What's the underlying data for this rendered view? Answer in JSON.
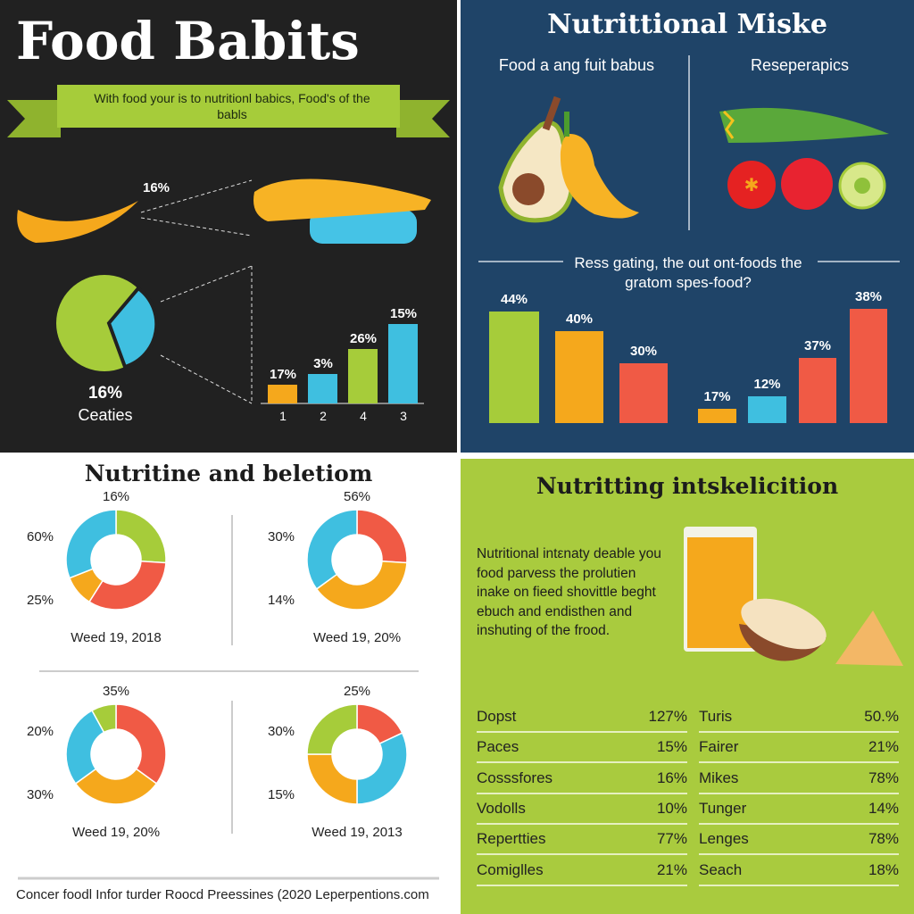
{
  "panel_food": {
    "title": "Food Babits",
    "banner": "With food your is to nutritionl babics, Food's of the babls",
    "callout_pct": "16%",
    "pie_pct": "16%",
    "pie_label": "Ceaties",
    "pie_colors": [
      "#a6cc3a",
      "#3fbfe0"
    ]
  },
  "panel_miske": {
    "title": "Nutrittional Miske",
    "left_heading": "Food a ang fuit babus",
    "right_heading": "Reseperapics",
    "question": "Ress gating, the out ont-foods the gratom spes-food?"
  },
  "panel_beletiom": {
    "title": "Nutritine and beletiom",
    "footer": "Concer foodl Infor turder Roocd Preessines (2020 Leperpentions.com"
  },
  "panel_intake": {
    "title": "Nutritting intskelicition",
    "paragraph": "Nutritional intεnaty deable you food parvess the prolutien inake on fieed shovittle beght ebuch and endisthen and inshuting of the frood.",
    "table_left": [
      {
        "name": "Dopst",
        "value": "127%"
      },
      {
        "name": "Paces",
        "value": "15%"
      },
      {
        "name": "Cosssfores",
        "value": "16%"
      },
      {
        "name": "Vodolls",
        "value": "10%"
      },
      {
        "name": "Repertties",
        "value": "77%"
      },
      {
        "name": "Comiglles",
        "value": "21%"
      }
    ],
    "table_right": [
      {
        "name": "Turis",
        "value": "50.%"
      },
      {
        "name": "Fairer",
        "value": "21%"
      },
      {
        "name": "Mikes",
        "value": "78%"
      },
      {
        "name": "Tunger",
        "value": "14%"
      },
      {
        "name": "Lenges",
        "value": "78%"
      },
      {
        "name": "Seach",
        "value": "18%"
      }
    ]
  },
  "chart_data": [
    {
      "type": "bar",
      "categories": [
        "1",
        "2",
        "4",
        "3"
      ],
      "labels": [
        "17%",
        "3%",
        "26%",
        "15%"
      ],
      "colors": [
        "#f5a81c",
        "#3fbfe0",
        "#a6cc3a",
        "#3fbfe0"
      ]
    },
    {
      "type": "bar",
      "labels": [
        "44%",
        "40%",
        "30%",
        "17%",
        "12%",
        "37%",
        "38%"
      ],
      "colors": [
        "#a6cc3a",
        "#f5a81c",
        "#f05a45",
        "#f5a81c",
        "#3fbfe0",
        "#f05a45",
        "#f05a45"
      ]
    },
    {
      "type": "pie",
      "donuts": [
        {
          "top": "16%",
          "left_upper": "60%",
          "left_lower": "25%",
          "caption": "Weed 19, 2018",
          "segments": [
            {
              "color": "#a6cc3a",
              "share": 0.26
            },
            {
              "color": "#f05a45",
              "share": 0.33
            },
            {
              "color": "#f5a81c",
              "share": 0.1
            },
            {
              "color": "#3fbfe0",
              "share": 0.31
            }
          ]
        },
        {
          "top": "56%",
          "left_upper": "30%",
          "left_lower": "14%",
          "caption": "Weed 19, 20%",
          "segments": [
            {
              "color": "#f05a45",
              "share": 0.26
            },
            {
              "color": "#f5a81c",
              "share": 0.39
            },
            {
              "color": "#3fbfe0",
              "share": 0.35
            }
          ]
        },
        {
          "top": "35%",
          "left_upper": "20%",
          "left_lower": "30%",
          "caption": "Weed 19, 20%",
          "segments": [
            {
              "color": "#f05a45",
              "share": 0.35
            },
            {
              "color": "#f5a81c",
              "share": 0.3
            },
            {
              "color": "#3fbfe0",
              "share": 0.27
            },
            {
              "color": "#a6cc3a",
              "share": 0.08
            }
          ]
        },
        {
          "top": "25%",
          "left_upper": "30%",
          "left_lower": "15%",
          "caption": "Weed 19, 2013",
          "segments": [
            {
              "color": "#f05a45",
              "share": 0.18
            },
            {
              "color": "#3fbfe0",
              "share": 0.32
            },
            {
              "color": "#f5a81c",
              "share": 0.25
            },
            {
              "color": "#a6cc3a",
              "share": 0.25
            }
          ]
        }
      ]
    }
  ]
}
